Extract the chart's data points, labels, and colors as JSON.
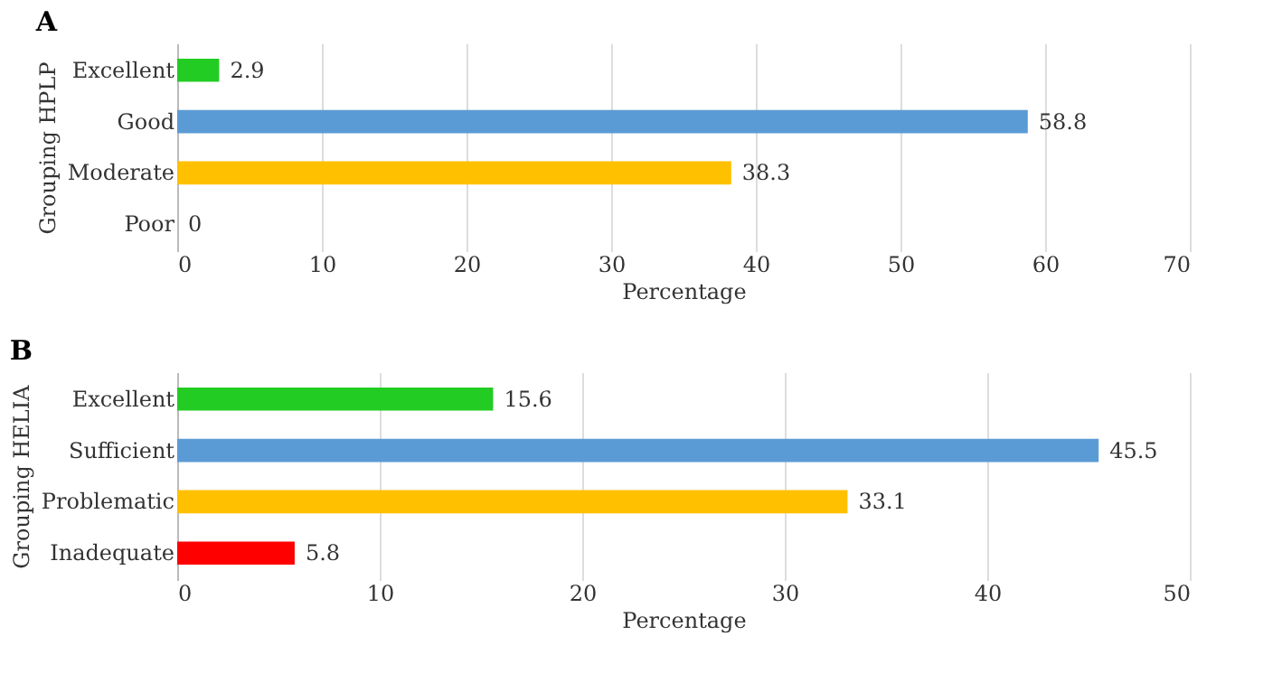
{
  "chart_data": [
    {
      "type": "bar",
      "orientation": "horizontal",
      "title": "A",
      "xlabel": "Percentage",
      "ylabel": "Grouping HPLP",
      "categories": [
        "Excellent",
        "Good",
        "Moderate",
        "Poor"
      ],
      "values": [
        2.9,
        58.8,
        38.3,
        0
      ],
      "colors": [
        "#22cc22",
        "#5b9bd5",
        "#ffc000",
        "#ff0000"
      ],
      "xlim": [
        0,
        70
      ],
      "xticks": [
        0,
        10,
        20,
        30,
        40,
        50,
        60,
        70
      ],
      "grid": "x",
      "data_labels": true,
      "legend": false
    },
    {
      "type": "bar",
      "orientation": "horizontal",
      "title": "B",
      "xlabel": "Percentage",
      "ylabel": "Grouping HELIA",
      "categories": [
        "Excellent",
        "Sufficient",
        "Problematic",
        "Inadequate"
      ],
      "values": [
        15.6,
        45.5,
        33.1,
        5.8
      ],
      "colors": [
        "#22cc22",
        "#5b9bd5",
        "#ffc000",
        "#ff0000"
      ],
      "xlim": [
        0,
        50
      ],
      "xticks": [
        0,
        10,
        20,
        30,
        40,
        50
      ],
      "grid": "x",
      "data_labels": true,
      "legend": false
    }
  ]
}
